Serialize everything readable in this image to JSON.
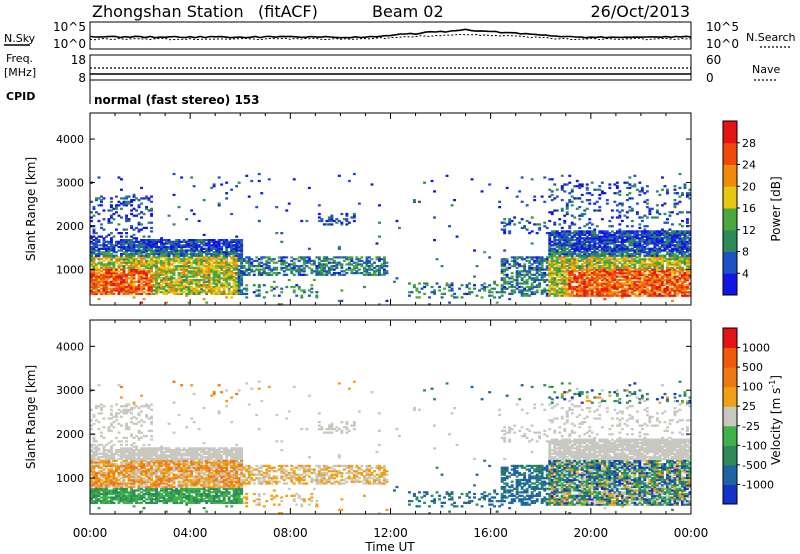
{
  "header": {
    "station": "Zhongshan Station",
    "mode": "(fitACF)",
    "beam": "Beam 02",
    "date": "26/Oct/2013"
  },
  "summary_panel": {
    "noise_left_label": "N.Sky",
    "noise_left_ticks": [
      "10^5",
      "10^0"
    ],
    "noise_right_label": "N.Search",
    "noise_right_ticks": [
      "10^5",
      "10^0"
    ],
    "freq_label_1": "Freq.",
    "freq_label_2": "[MHz]",
    "freq_ticks": [
      "18",
      "8"
    ],
    "nave_label": "Nave",
    "nave_ticks": [
      "60",
      "0"
    ],
    "cpid_label": "CPID",
    "cpid_text": "normal (fast stereo) 153"
  },
  "chart_data": [
    {
      "type": "heatmap",
      "id": "power",
      "ylabel": "Slant Range [km]",
      "yticks": [
        "1000",
        "2000",
        "3000",
        "4000"
      ],
      "xticks": [
        "00:00",
        "04:00",
        "08:00",
        "12:00",
        "16:00",
        "20:00",
        "00:00"
      ],
      "xlim": [
        0,
        24
      ],
      "ylim": [
        180,
        4600
      ],
      "colorbar": {
        "label": "Power [dB]",
        "ticks": [
          "4",
          "8",
          "12",
          "16",
          "20",
          "24",
          "28"
        ],
        "colors": [
          "#1414e6",
          "#1e50c8",
          "#2f8a5a",
          "#49a840",
          "#e6c814",
          "#f08c0a",
          "#f04a0a",
          "#e61414"
        ]
      },
      "echo_regions_hours_km": [
        {
          "t": [
            0.0,
            6.0
          ],
          "r": [
            400,
            1600
          ],
          "level": "high"
        },
        {
          "t": [
            6.5,
            11.5
          ],
          "r": [
            900,
            1300
          ],
          "level": "low"
        },
        {
          "t": [
            16.5,
            18.0
          ],
          "r": [
            500,
            1200
          ],
          "level": "mid"
        },
        {
          "t": [
            18.0,
            24.0
          ],
          "r": [
            400,
            2000
          ],
          "level": "high"
        }
      ]
    },
    {
      "type": "heatmap",
      "id": "velocity",
      "ylabel": "Slant Range [km]",
      "yticks": [
        "1000",
        "2000",
        "3000",
        "4000"
      ],
      "xticks": [
        "00:00",
        "04:00",
        "08:00",
        "12:00",
        "16:00",
        "20:00",
        "00:00"
      ],
      "xlabel": "Time UT",
      "xlim": [
        0,
        24
      ],
      "ylim": [
        180,
        4600
      ],
      "colorbar": {
        "label": "Velocity [m s",
        "label_sup": "-1",
        "label_end": "]",
        "ticks": [
          "1000",
          "500",
          "100",
          "25",
          "-25",
          "-100",
          "-500",
          "-1000"
        ],
        "colors": [
          "#1432c8",
          "#1e64a0",
          "#2f8a5a",
          "#3fb34a",
          "#c8c8c0",
          "#f0a014",
          "#f07814",
          "#f05a0a",
          "#e61414"
        ]
      }
    }
  ]
}
